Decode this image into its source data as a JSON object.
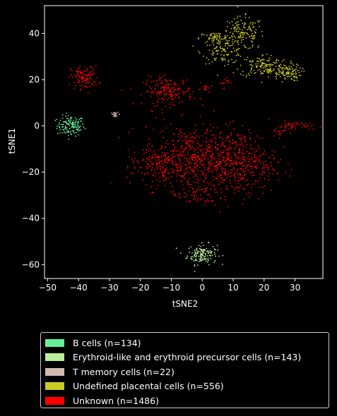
{
  "chart_data": {
    "type": "scatter",
    "title": "",
    "xlabel": "tSNE2",
    "ylabel": "tSNE1",
    "xlim": [
      -51,
      39
    ],
    "ylim": [
      -66,
      52
    ],
    "x_ticks": [
      -50,
      -40,
      -30,
      -20,
      -10,
      0,
      10,
      20,
      30
    ],
    "y_ticks": [
      -60,
      -40,
      -20,
      0,
      20,
      40
    ],
    "grid": false,
    "background": "#000000",
    "legend_position": "below",
    "series": [
      {
        "name": "B cells (n=134)",
        "color": "#66ee99",
        "n": 134,
        "clusters": [
          {
            "cx": -42.5,
            "cy": 0,
            "sx": 2.2,
            "sy": 2.2,
            "n": 134
          }
        ]
      },
      {
        "name": "Erythroid-like and erythroid precursor cells (n=143)",
        "color": "#bbee99",
        "n": 143,
        "clusters": [
          {
            "cx": 0,
            "cy": -55.5,
            "sx": 2.4,
            "sy": 2.2,
            "n": 143
          }
        ]
      },
      {
        "name": "T memory cells (n=22)",
        "color": "#d1b8b0",
        "n": 22,
        "clusters": [
          {
            "cx": -28,
            "cy": 5,
            "sx": 0.7,
            "sy": 0.4,
            "n": 22
          }
        ]
      },
      {
        "name": "Undefined placental cells (n=556)",
        "color": "#c8cc22",
        "n": 556,
        "clusters": [
          {
            "cx": 13,
            "cy": 40,
            "sx": 3.5,
            "sy": 3.5,
            "n": 150
          },
          {
            "cx": 7,
            "cy": 32,
            "sx": 3.5,
            "sy": 2.5,
            "n": 100
          },
          {
            "cx": 4,
            "cy": 38,
            "sx": 2.5,
            "sy": 1.2,
            "n": 60
          },
          {
            "cx": 20,
            "cy": 26,
            "sx": 4,
            "sy": 2.5,
            "n": 140
          },
          {
            "cx": 27,
            "cy": 23,
            "sx": 2.5,
            "sy": 1.8,
            "n": 106
          }
        ]
      },
      {
        "name": "Unknown (n=1486)",
        "color": "#ff0000",
        "n": 1486,
        "clusters": [
          {
            "cx": -38,
            "cy": 21,
            "sx": 2.2,
            "sy": 2.5,
            "n": 110
          },
          {
            "cx": -11,
            "cy": 15,
            "sx": 4,
            "sy": 3,
            "n": 180
          },
          {
            "cx": 1.5,
            "cy": 16,
            "sx": 1,
            "sy": 1,
            "n": 15
          },
          {
            "cx": 7,
            "cy": 19,
            "sx": 0.8,
            "sy": 1.2,
            "n": 15
          },
          {
            "cx": 30,
            "cy": 0,
            "sx": 3,
            "sy": 1,
            "n": 45
          },
          {
            "cx": 25,
            "cy": -3,
            "sx": 1.5,
            "sy": 1,
            "n": 15
          },
          {
            "cx": -3,
            "cy": -14,
            "sx": 8,
            "sy": 7,
            "n": 560
          },
          {
            "cx": 12,
            "cy": -16,
            "sx": 6,
            "sy": 7,
            "n": 380
          },
          {
            "cx": -15,
            "cy": -17,
            "sx": 4,
            "sy": 4,
            "n": 110
          },
          {
            "cx": -2,
            "cy": -30,
            "sx": 4,
            "sy": 2.5,
            "n": 56
          }
        ]
      }
    ]
  }
}
